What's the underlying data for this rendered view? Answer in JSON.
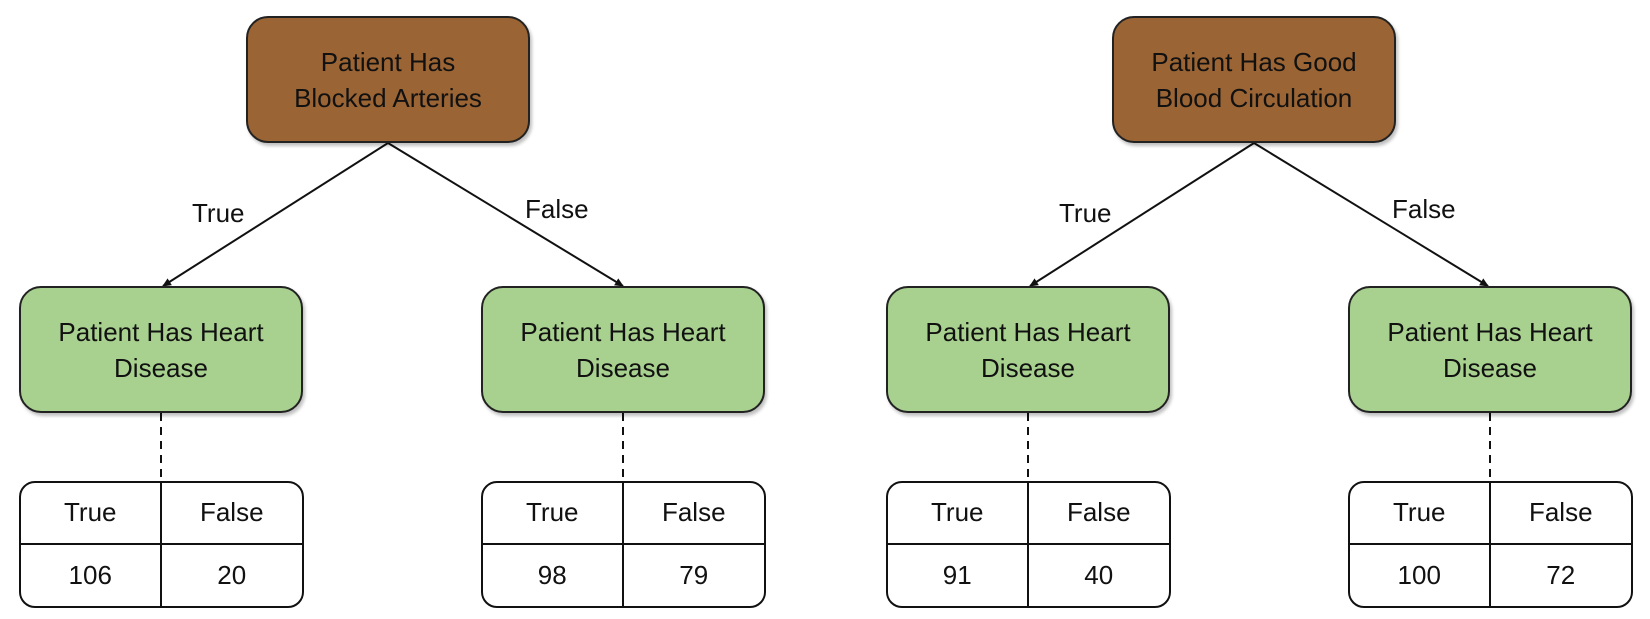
{
  "trees": [
    {
      "root": {
        "lines": [
          "Patient Has",
          "Blocked Arteries"
        ]
      },
      "true_label": "True",
      "false_label": "False",
      "leaves": [
        {
          "lines": [
            "Patient Has Heart",
            "Disease"
          ],
          "col_true": "True",
          "col_false": "False",
          "count_true": "106",
          "count_false": "20"
        },
        {
          "lines": [
            "Patient Has Heart",
            "Disease"
          ],
          "col_true": "True",
          "col_false": "False",
          "count_true": "98",
          "count_false": "79"
        }
      ]
    },
    {
      "root": {
        "lines": [
          "Patient Has Good",
          "Blood Circulation"
        ]
      },
      "true_label": "True",
      "false_label": "False",
      "leaves": [
        {
          "lines": [
            "Patient Has Heart",
            "Disease"
          ],
          "col_true": "True",
          "col_false": "False",
          "count_true": "91",
          "count_false": "40"
        },
        {
          "lines": [
            "Patient Has Heart",
            "Disease"
          ],
          "col_true": "True",
          "col_false": "False",
          "count_true": "100",
          "count_false": "72"
        }
      ]
    }
  ],
  "colors": {
    "root_fill": "#9b6434",
    "leaf_fill": "#a8d18f",
    "line": "#111111"
  }
}
